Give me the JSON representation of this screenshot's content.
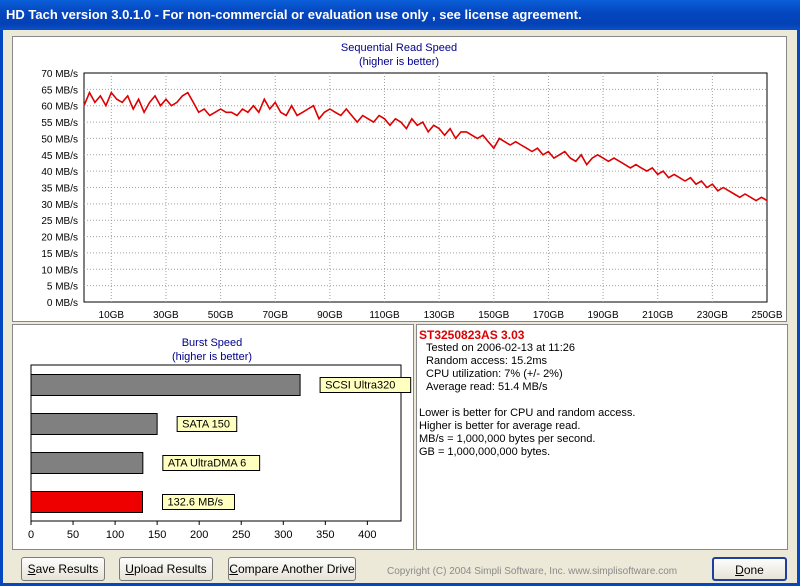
{
  "window": {
    "title": "HD Tach version 3.0.1.0  - For non-commercial or evaluation use only , see license agreement."
  },
  "chart_data": [
    {
      "type": "line",
      "title": "Sequential Read Speed",
      "subtitle": "(higher is better)",
      "y_ticks": [
        "70 MB/s",
        "65 MB/s",
        "60 MB/s",
        "55 MB/s",
        "50 MB/s",
        "45 MB/s",
        "40 MB/s",
        "35 MB/s",
        "30 MB/s",
        "25 MB/s",
        "20 MB/s",
        "15 MB/s",
        "10 MB/s",
        "5 MB/s",
        "0 MB/s"
      ],
      "x_ticks": [
        "10GB",
        "30GB",
        "50GB",
        "70GB",
        "90GB",
        "110GB",
        "130GB",
        "150GB",
        "170GB",
        "190GB",
        "210GB",
        "230GB",
        "250GB"
      ],
      "ylim": [
        0,
        70
      ],
      "xlim": [
        0,
        250
      ],
      "grid": true,
      "line_color": "#dd0000",
      "series": [
        {
          "x": [
            0,
            2,
            4,
            6,
            8,
            10,
            12,
            14,
            16,
            18,
            20,
            22,
            24,
            26,
            28,
            30,
            32,
            34,
            36,
            38,
            40,
            42,
            44,
            46,
            48,
            50,
            52,
            54,
            56,
            58,
            60,
            62,
            64,
            66,
            68,
            70,
            72,
            74,
            76,
            78,
            80,
            82,
            84,
            86,
            88,
            90,
            92,
            94,
            96,
            98,
            100,
            102,
            104,
            106,
            108,
            110,
            112,
            114,
            116,
            118,
            120,
            122,
            124,
            126,
            128,
            130,
            132,
            134,
            136,
            138,
            140,
            142,
            144,
            146,
            148,
            150,
            152,
            154,
            156,
            158,
            160,
            162,
            164,
            166,
            168,
            170,
            172,
            174,
            176,
            178,
            180,
            182,
            184,
            186,
            188,
            190,
            192,
            194,
            196,
            198,
            200,
            202,
            204,
            206,
            208,
            210,
            212,
            214,
            216,
            218,
            220,
            222,
            224,
            226,
            228,
            230,
            232,
            234,
            236,
            238,
            240,
            242,
            244,
            246,
            248,
            250
          ],
          "values": [
            60,
            64,
            61,
            63,
            60,
            64,
            62,
            61,
            63,
            59,
            62,
            58,
            61,
            63,
            60,
            62,
            60,
            61,
            63,
            64,
            61,
            58,
            59,
            57,
            58,
            59,
            58,
            58,
            57,
            59,
            58,
            60,
            58,
            62,
            59,
            61,
            58,
            57,
            60,
            57,
            58,
            59,
            60,
            56,
            58,
            59,
            58,
            57,
            59,
            57,
            55,
            57,
            56,
            55,
            57,
            56,
            54,
            56,
            55,
            53,
            56,
            54,
            55,
            52,
            54,
            53,
            51,
            53,
            50,
            52,
            52,
            51,
            50,
            51,
            49,
            47,
            50,
            49,
            48,
            49,
            48,
            47,
            46,
            47,
            45,
            46,
            44,
            45,
            46,
            44,
            43,
            45,
            42,
            44,
            45,
            44,
            43,
            44,
            43,
            42,
            41,
            42,
            41,
            40,
            41,
            39,
            40,
            38,
            39,
            38,
            37,
            38,
            36,
            37,
            35,
            36,
            34,
            35,
            34,
            33,
            32,
            33,
            32,
            31,
            32,
            31
          ]
        }
      ]
    },
    {
      "type": "bar",
      "title": "Burst Speed",
      "subtitle": "(higher is better)",
      "x_ticks": [
        "0",
        "50",
        "100",
        "150",
        "200",
        "250",
        "300",
        "350",
        "400"
      ],
      "xlim": [
        0,
        440
      ],
      "categories": [
        "SCSI Ultra320",
        "SATA 150",
        "ATA UltraDMA 6",
        "132.6 MB/s"
      ],
      "values": [
        320,
        150,
        133,
        132.6
      ],
      "colors": [
        "#808080",
        "#808080",
        "#808080",
        "#ee0000"
      ]
    }
  ],
  "drive": {
    "name": "ST3250823AS  3.03",
    "tested": "Tested on 2006-02-13 at 11:26",
    "random_access": "Random access: 15.2ms",
    "cpu": "CPU utilization: 7% (+/- 2%)",
    "avg_read": "Average read: 51.4 MB/s"
  },
  "notes": [
    "Lower is better for CPU and random access.",
    "Higher is better for average read.",
    "MB/s = 1,000,000 bytes per second.",
    "GB = 1,000,000,000 bytes."
  ],
  "buttons": {
    "save_u": "S",
    "save_rest": "ave Results",
    "upload_u": "U",
    "upload_rest": "pload Results",
    "compare_u": "C",
    "compare_rest": "ompare Another Drive",
    "done_u": "D",
    "done_rest": "one"
  },
  "copyright": "Copyright (C) 2004 Simpli Software, Inc. www.simplisoftware.com"
}
